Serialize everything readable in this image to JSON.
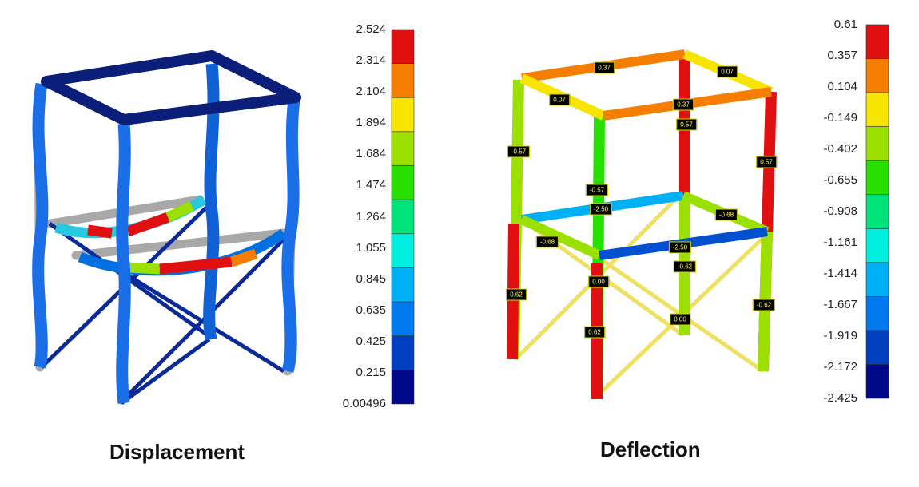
{
  "displacement": {
    "caption": "Displacement",
    "scale_labels": [
      "2.524",
      "2.314",
      "2.104",
      "1.894",
      "1.684",
      "1.474",
      "1.264",
      "1.055",
      "0.845",
      "0.635",
      "0.425",
      "0.215",
      "0.00496"
    ],
    "scale_colors": [
      "#e01010",
      "#f57e00",
      "#f7e400",
      "#9be000",
      "#28e000",
      "#00e37a",
      "#00eee0",
      "#00b0f5",
      "#0078ee",
      "#0040c0",
      "#000a88"
    ]
  },
  "deflection": {
    "caption": "Deflection",
    "scale_labels": [
      "0.61",
      "0.357",
      "0.104",
      "-0.149",
      "-0.402",
      "-0.655",
      "-0.908",
      "-1.161",
      "-1.414",
      "-1.667",
      "-1.919",
      "-2.172",
      "-2.425"
    ],
    "scale_colors": [
      "#e01010",
      "#f57e00",
      "#f7e400",
      "#9be000",
      "#28e000",
      "#00e37a",
      "#00eee0",
      "#00b0f5",
      "#0078ee",
      "#0040c0",
      "#000a88"
    ],
    "tags": [
      "0.37",
      "0.07",
      "0.07",
      "0.37",
      "0.57",
      "-0.57",
      "0.57",
      "-0.57",
      "-2.50",
      "-0.68",
      "-0.68",
      "-2.50",
      "-0.62",
      "0.00",
      "0.62",
      "-0.62",
      "0.62",
      "0.00"
    ]
  }
}
